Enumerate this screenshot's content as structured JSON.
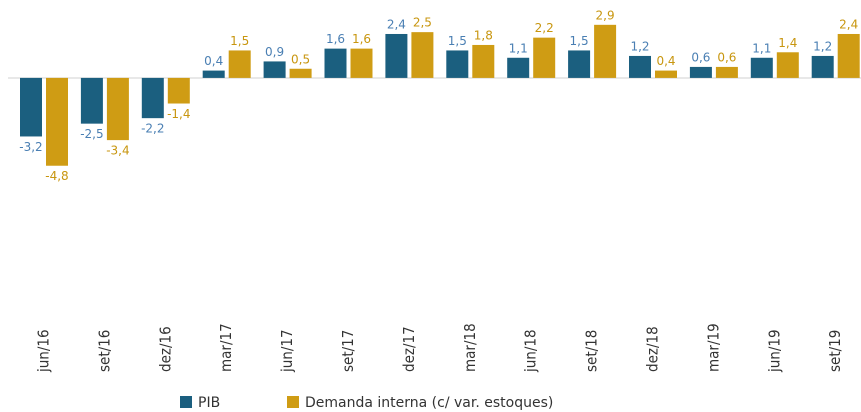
{
  "chart_data": {
    "type": "bar",
    "categories": [
      "jun/16",
      "set/16",
      "dez/16",
      "mar/17",
      "jun/17",
      "set/17",
      "dez/17",
      "mar/18",
      "jun/18",
      "set/18",
      "dez/18",
      "mar/19",
      "jun/19",
      "set/19"
    ],
    "series": [
      {
        "name": "PIB",
        "color": "#1b5f7f",
        "label_color": "#4a7fb3",
        "values": [
          -3.2,
          -2.5,
          -2.2,
          0.4,
          0.9,
          1.6,
          2.4,
          1.5,
          1.1,
          1.5,
          1.2,
          0.6,
          1.1,
          1.2
        ],
        "value_labels": [
          "-3,2",
          "-2,5",
          "-2,2",
          "0,4",
          "0,9",
          "1,6",
          "2,4",
          "1,5",
          "1,1",
          "1,5",
          "1,2",
          "0,6",
          "1,1",
          "1,2"
        ]
      },
      {
        "name": "Demanda interna (c/ var. estoques)",
        "color": "#cf9c14",
        "label_color": "#c8960f",
        "values": [
          -4.8,
          -3.4,
          -1.4,
          1.5,
          0.5,
          1.6,
          2.5,
          1.8,
          2.2,
          2.9,
          0.4,
          0.6,
          1.4,
          2.4
        ],
        "value_labels": [
          "-4,8",
          "-3,4",
          "-1,4",
          "1,5",
          "0,5",
          "1,6",
          "2,5",
          "1,8",
          "2,2",
          "2,9",
          "0,4",
          "0,6",
          "1,4",
          "2,4"
        ]
      }
    ],
    "ylim": [
      -5,
      3
    ]
  }
}
